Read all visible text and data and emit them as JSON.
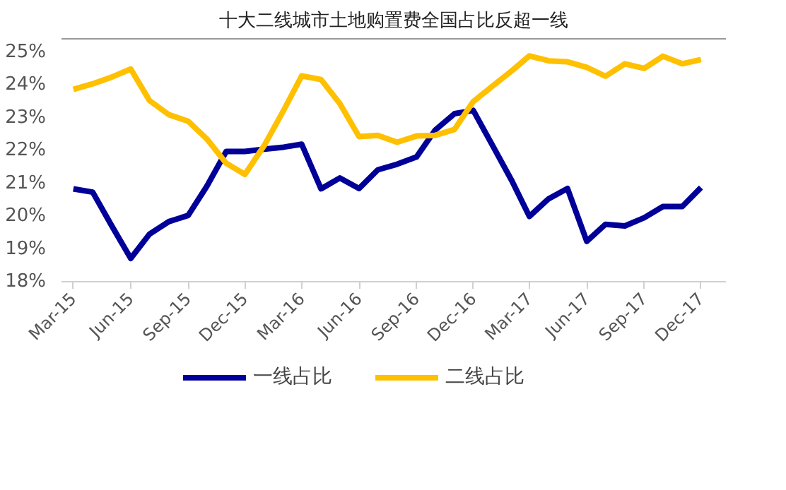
{
  "chart_data": {
    "type": "line",
    "title": "十大二线城市土地购置费全国占比反超一线",
    "x": [
      "2015-03",
      "2015-04",
      "2015-05",
      "2015-06",
      "2015-07",
      "2015-08",
      "2015-09",
      "2015-10",
      "2015-11",
      "2015-12",
      "2016-01",
      "2016-02",
      "2016-03",
      "2016-04",
      "2016-05",
      "2016-06",
      "2016-07",
      "2016-08",
      "2016-09",
      "2016-10",
      "2016-11",
      "2016-12",
      "2017-01",
      "2017-02",
      "2017-03",
      "2017-04",
      "2017-05",
      "2017-06",
      "2017-07",
      "2017-08",
      "2017-09",
      "2017-10",
      "2017-11",
      "2017-12"
    ],
    "series": [
      {
        "name": "一线占比",
        "color": "#000099",
        "values": [
          20.83,
          20.73,
          19.72,
          18.71,
          19.45,
          19.83,
          20.02,
          20.91,
          21.97,
          21.97,
          22.04,
          22.1,
          22.19,
          20.83,
          21.16,
          20.84,
          21.41,
          21.58,
          21.8,
          22.62,
          23.12,
          23.22,
          22.15,
          21.07,
          19.99,
          20.53,
          20.84,
          19.23,
          19.75,
          19.7,
          19.95,
          20.29,
          20.29,
          20.87
        ]
      },
      {
        "name": "二线占比",
        "color": "#ffc000",
        "values": [
          23.86,
          24.03,
          24.23,
          24.48,
          23.52,
          23.09,
          22.89,
          22.35,
          21.61,
          21.27,
          22.15,
          23.22,
          24.27,
          24.16,
          23.43,
          22.42,
          22.46,
          22.25,
          22.44,
          22.46,
          22.64,
          23.49,
          23.96,
          24.43,
          24.88,
          24.73,
          24.7,
          24.53,
          24.26,
          24.64,
          24.5,
          24.87,
          24.64,
          24.77
        ]
      }
    ],
    "xlim": [
      "2015-02-10",
      "2018-01-10"
    ],
    "xticks": [
      {
        "value": "2015-03",
        "label": "Mar-15"
      },
      {
        "value": "2015-06",
        "label": "Jun-15"
      },
      {
        "value": "2015-09",
        "label": "Sep-15"
      },
      {
        "value": "2015-12",
        "label": "Dec-15"
      },
      {
        "value": "2016-03",
        "label": "Mar-16"
      },
      {
        "value": "2016-06",
        "label": "Jun-16"
      },
      {
        "value": "2016-09",
        "label": "Sep-16"
      },
      {
        "value": "2016-12",
        "label": "Dec-16"
      },
      {
        "value": "2017-03",
        "label": "Mar-17"
      },
      {
        "value": "2017-06",
        "label": "Jun-17"
      },
      {
        "value": "2017-09",
        "label": "Sep-17"
      },
      {
        "value": "2017-12",
        "label": "Dec-17"
      }
    ],
    "ylim": [
      18,
      25.4
    ],
    "yticks": [
      {
        "value": 18,
        "label": "18%"
      },
      {
        "value": 19,
        "label": "19%"
      },
      {
        "value": 20,
        "label": "20%"
      },
      {
        "value": 21,
        "label": "21%"
      },
      {
        "value": 22,
        "label": "22%"
      },
      {
        "value": 23,
        "label": "23%"
      },
      {
        "value": 24,
        "label": "24%"
      },
      {
        "value": 25,
        "label": "25%"
      }
    ],
    "grid": false,
    "legend": "bottom",
    "marker": "none",
    "line_style": "solid"
  }
}
